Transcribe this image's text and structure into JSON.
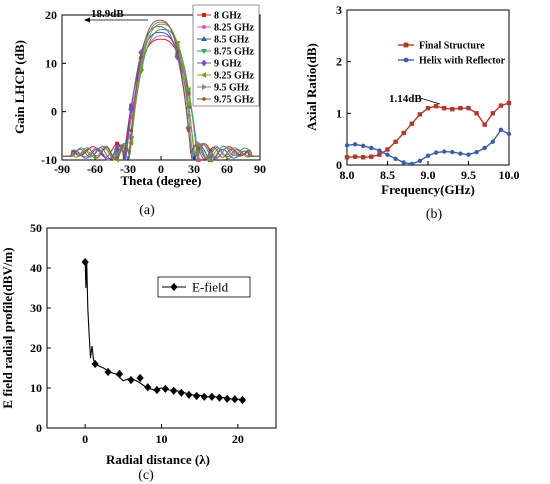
{
  "chart_data": [
    {
      "type": "line",
      "caption": "(a)",
      "xlabel": "Theta (degree)",
      "ylabel": "Gain LHCP (dB)",
      "xlim": [
        -90,
        90
      ],
      "ylim": [
        -10,
        20
      ],
      "xticks": [
        -90,
        -60,
        -30,
        0,
        30,
        60,
        90
      ],
      "yticks": [
        -10,
        0,
        10,
        20
      ],
      "annotation": "18.9dB",
      "legend_position": "top-right",
      "grid": false,
      "series": [
        {
          "name": "8 GHz",
          "color": "#cc2222",
          "marker": "square",
          "peak": 15.0,
          "halfwidth": 30,
          "offset": 0
        },
        {
          "name": "8.25 GHz",
          "color": "#dd55aa",
          "marker": "circle",
          "peak": 15.7,
          "halfwidth": 29,
          "offset": 1
        },
        {
          "name": "8.5 GHz",
          "color": "#2a5fb0",
          "marker": "triangle-up",
          "peak": 16.4,
          "halfwidth": 28,
          "offset": -1
        },
        {
          "name": "8.75 GHz",
          "color": "#33aa55",
          "marker": "triangle-down",
          "peak": 17.0,
          "halfwidth": 27,
          "offset": 2
        },
        {
          "name": "9 GHz",
          "color": "#7755bb",
          "marker": "diamond",
          "peak": 17.6,
          "halfwidth": 26,
          "offset": -2
        },
        {
          "name": "9.25 GHz",
          "color": "#889922",
          "marker": "triangle-left",
          "peak": 18.1,
          "halfwidth": 25.5,
          "offset": 1
        },
        {
          "name": "9.5 GHz",
          "color": "#778899",
          "marker": "triangle-right",
          "peak": 18.5,
          "halfwidth": 25,
          "offset": 0
        },
        {
          "name": "9.75 GHz",
          "color": "#8a5a2a",
          "marker": "hexagon",
          "peak": 18.9,
          "halfwidth": 24.5,
          "offset": -1
        }
      ]
    },
    {
      "type": "line",
      "caption": "(b)",
      "xlabel": "Frequency(GHz)",
      "ylabel": "Axial Ratio(dB)",
      "xlim": [
        8.0,
        10.0
      ],
      "ylim": [
        0,
        3
      ],
      "xticks": [
        8.0,
        8.5,
        9.0,
        9.5,
        10.0
      ],
      "yticks": [
        0,
        1,
        2,
        3
      ],
      "annotation": "1.14dB",
      "annotation_point": [
        9.12,
        1.14
      ],
      "legend_position": "top-right",
      "grid": false,
      "series": [
        {
          "name": "Final Structure",
          "color": "#b03a2e",
          "marker": "square",
          "x": [
            8.0,
            8.1,
            8.2,
            8.3,
            8.4,
            8.5,
            8.6,
            8.7,
            8.8,
            8.9,
            9.0,
            9.1,
            9.2,
            9.3,
            9.4,
            9.5,
            9.6,
            9.7,
            9.8,
            9.9,
            10.0
          ],
          "y": [
            0.15,
            0.16,
            0.15,
            0.16,
            0.2,
            0.3,
            0.45,
            0.62,
            0.8,
            0.98,
            1.1,
            1.14,
            1.1,
            1.08,
            1.1,
            1.1,
            1.0,
            0.78,
            1.0,
            1.15,
            1.2
          ]
        },
        {
          "name": "Helix with Reflector",
          "color": "#3b5ea8",
          "marker": "circle",
          "x": [
            8.0,
            8.1,
            8.2,
            8.3,
            8.4,
            8.5,
            8.6,
            8.7,
            8.8,
            8.9,
            9.0,
            9.1,
            9.2,
            9.3,
            9.4,
            9.5,
            9.6,
            9.7,
            9.8,
            9.9,
            10.0
          ],
          "y": [
            0.38,
            0.4,
            0.37,
            0.33,
            0.28,
            0.2,
            0.12,
            0.05,
            0.02,
            0.08,
            0.18,
            0.24,
            0.26,
            0.25,
            0.22,
            0.2,
            0.25,
            0.33,
            0.45,
            0.68,
            0.6
          ]
        }
      ]
    },
    {
      "type": "line",
      "caption": "(c)",
      "xlabel": "Radial distance (λ)",
      "ylabel": "E field radial profile(dBV/m)",
      "xlim": [
        -5,
        25
      ],
      "ylim": [
        0,
        50
      ],
      "xticks": [
        0,
        10,
        20
      ],
      "yticks": [
        0,
        10,
        20,
        30,
        40,
        50
      ],
      "legend_position": "top-right",
      "grid": false,
      "series": [
        {
          "name": "E-field",
          "color": "#000000",
          "marker": "diamond",
          "x": [
            0,
            0.1,
            0.2,
            0.35,
            0.5,
            0.7,
            0.9,
            1.1,
            1.4,
            1.8,
            2.4,
            3.2,
            4.0,
            5.0,
            6.0,
            7.0,
            8.0,
            9.0,
            10.0,
            11.0,
            12.0,
            13.0,
            14.0,
            15.0,
            16.0,
            17.0,
            18.0,
            19.0,
            20.0,
            21.0
          ],
          "y": [
            41.5,
            35.0,
            41.8,
            30.0,
            24.0,
            17.5,
            20.5,
            17.0,
            16.0,
            15.5,
            15.0,
            14.0,
            13.5,
            11.8,
            12.5,
            11.5,
            10.2,
            9.5,
            10.0,
            9.5,
            9.3,
            8.8,
            8.3,
            8.2,
            7.8,
            7.8,
            7.6,
            7.3,
            7.2,
            7.0
          ],
          "marker_x": [
            0,
            1.3,
            3.0,
            4.5,
            6.0,
            7.2,
            8.2,
            9.4,
            10.5,
            11.6,
            12.6,
            13.6,
            14.6,
            15.6,
            16.6,
            17.6,
            18.6,
            19.6,
            20.6
          ],
          "marker_y": [
            41.5,
            16.0,
            14.0,
            13.5,
            12.0,
            12.5,
            10.2,
            9.5,
            9.8,
            9.3,
            8.8,
            8.3,
            8.0,
            7.8,
            7.8,
            7.6,
            7.3,
            7.2,
            7.0
          ]
        }
      ]
    }
  ]
}
